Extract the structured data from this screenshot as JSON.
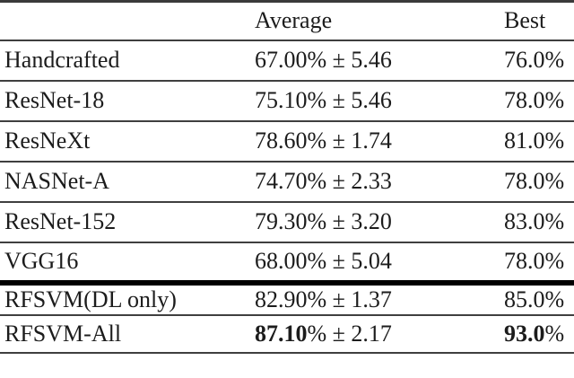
{
  "table": {
    "header": {
      "model_col_label": "",
      "average_col_label": "Average",
      "best_col_label": "Best"
    },
    "rules": {
      "thin_rule_color": "#3f3f3f",
      "thick_rule_color": "#000000"
    },
    "rows": [
      {
        "name": "Handcrafted",
        "average": {
          "value": "67.00",
          "suffix": "% ± 5.46",
          "value_bold": false
        },
        "best": {
          "value": "76.0",
          "suffix": "%",
          "value_bold": false
        },
        "thick_rule_above": false
      },
      {
        "name": "ResNet-18",
        "average": {
          "value": "75.10",
          "suffix": "% ± 5.46",
          "value_bold": false
        },
        "best": {
          "value": "78.0",
          "suffix": "%",
          "value_bold": false
        },
        "thick_rule_above": false
      },
      {
        "name": "ResNeXt",
        "average": {
          "value": "78.60",
          "suffix": "% ± 1.74",
          "value_bold": false
        },
        "best": {
          "value": "81.0",
          "suffix": "%",
          "value_bold": false
        },
        "thick_rule_above": false
      },
      {
        "name": "NASNet-A",
        "average": {
          "value": "74.70",
          "suffix": "% ± 2.33",
          "value_bold": false
        },
        "best": {
          "value": "78.0",
          "suffix": "%",
          "value_bold": false
        },
        "thick_rule_above": false
      },
      {
        "name": "ResNet-152",
        "average": {
          "value": "79.30",
          "suffix": "% ± 3.20",
          "value_bold": false
        },
        "best": {
          "value": "83.0",
          "suffix": "%",
          "value_bold": false
        },
        "thick_rule_above": false
      },
      {
        "name": "VGG16",
        "average": {
          "value": "68.00",
          "suffix": "% ± 5.04",
          "value_bold": false
        },
        "best": {
          "value": "78.0",
          "suffix": "%",
          "value_bold": false
        },
        "thick_rule_above": false
      },
      {
        "name": "RFSVM(DL only)",
        "average": {
          "value": "82.90",
          "suffix": "% ± 1.37",
          "value_bold": false
        },
        "best": {
          "value": "85.0",
          "suffix": "%",
          "value_bold": false
        },
        "thick_rule_above": true
      },
      {
        "name": "RFSVM-All",
        "average": {
          "value": "87.10",
          "suffix": "% ± 2.17",
          "value_bold": true
        },
        "best": {
          "value": "93.0",
          "suffix": "%",
          "value_bold": true
        },
        "thick_rule_above": false
      }
    ]
  }
}
